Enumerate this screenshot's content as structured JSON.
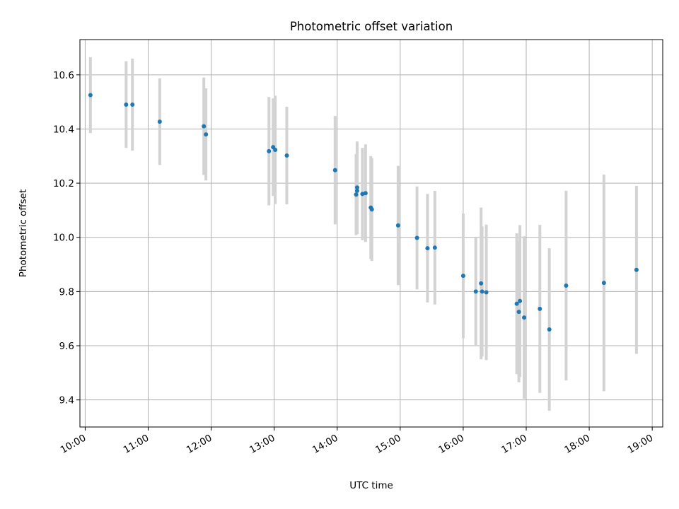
{
  "chart_data": {
    "type": "scatter",
    "title": "Photometric offset variation",
    "xlabel": "UTC time",
    "ylabel": "Photometric offset",
    "x_unit": "hours (UTC)",
    "xlim": [
      "09:55",
      "19:10"
    ],
    "ylim": [
      9.3,
      10.73
    ],
    "grid": true,
    "x_ticks": [
      "10:00",
      "11:00",
      "12:00",
      "13:00",
      "14:00",
      "15:00",
      "16:00",
      "17:00",
      "18:00",
      "19:00"
    ],
    "y_ticks": [
      "9.4",
      "9.6",
      "9.8",
      "10.0",
      "10.2",
      "10.4",
      "10.6"
    ],
    "colors": {
      "points": "#1f77b4",
      "errorbars": "#d3d3d3",
      "grid": "#b0b0b0"
    },
    "points": [
      {
        "x": "10:05",
        "y": 10.525,
        "err": 0.14
      },
      {
        "x": "10:39",
        "y": 10.49,
        "err": 0.16
      },
      {
        "x": "10:45",
        "y": 10.49,
        "err": 0.17
      },
      {
        "x": "11:11",
        "y": 10.427,
        "err": 0.16
      },
      {
        "x": "11:53",
        "y": 10.41,
        "err": 0.18
      },
      {
        "x": "11:55",
        "y": 10.38,
        "err": 0.17
      },
      {
        "x": "12:55",
        "y": 10.318,
        "err": 0.2
      },
      {
        "x": "12:59",
        "y": 10.333,
        "err": 0.18
      },
      {
        "x": "13:01",
        "y": 10.323,
        "err": 0.2
      },
      {
        "x": "13:12",
        "y": 10.302,
        "err": 0.18
      },
      {
        "x": "13:58",
        "y": 10.248,
        "err": 0.2
      },
      {
        "x": "14:18",
        "y": 10.158,
        "err": 0.15
      },
      {
        "x": "14:19",
        "y": 10.172,
        "err": 0.16
      },
      {
        "x": "14:19",
        "y": 10.184,
        "err": 0.17
      },
      {
        "x": "14:24",
        "y": 10.16,
        "err": 0.17
      },
      {
        "x": "14:27",
        "y": 10.163,
        "err": 0.18
      },
      {
        "x": "14:32",
        "y": 10.11,
        "err": 0.19
      },
      {
        "x": "14:33",
        "y": 10.103,
        "err": 0.19
      },
      {
        "x": "14:58",
        "y": 10.044,
        "err": 0.22
      },
      {
        "x": "15:16",
        "y": 9.998,
        "err": 0.19
      },
      {
        "x": "15:26",
        "y": 9.96,
        "err": 0.2
      },
      {
        "x": "15:33",
        "y": 9.962,
        "err": 0.21
      },
      {
        "x": "16:00",
        "y": 9.858,
        "err": 0.23
      },
      {
        "x": "16:12",
        "y": 9.8,
        "err": 0.2
      },
      {
        "x": "16:17",
        "y": 9.83,
        "err": 0.28
      },
      {
        "x": "16:18",
        "y": 9.8,
        "err": 0.24
      },
      {
        "x": "16:22",
        "y": 9.797,
        "err": 0.25
      },
      {
        "x": "16:51",
        "y": 9.755,
        "err": 0.26
      },
      {
        "x": "16:53",
        "y": 9.725,
        "err": 0.26
      },
      {
        "x": "16:54",
        "y": 9.765,
        "err": 0.28
      },
      {
        "x": "16:58",
        "y": 9.704,
        "err": 0.3
      },
      {
        "x": "17:13",
        "y": 9.736,
        "err": 0.31
      },
      {
        "x": "17:22",
        "y": 9.66,
        "err": 0.3
      },
      {
        "x": "17:38",
        "y": 9.822,
        "err": 0.35
      },
      {
        "x": "18:14",
        "y": 9.832,
        "err": 0.4
      },
      {
        "x": "18:45",
        "y": 9.88,
        "err": 0.31
      }
    ]
  }
}
